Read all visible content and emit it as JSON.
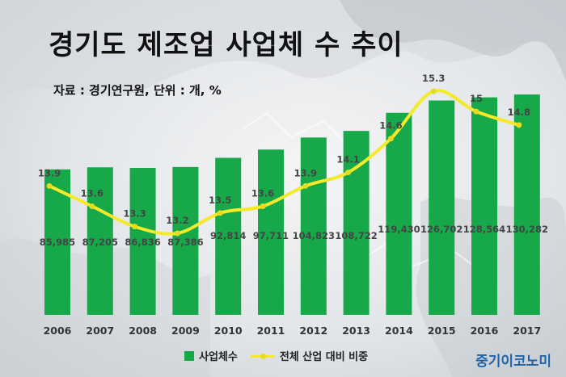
{
  "title": "경기도 제조업 사업체 수 추이",
  "source": "자료 : 경기연구원, 단위 : 개, %",
  "brand": "중기이코노미",
  "colors": {
    "bar": "#17a84a",
    "line": "#f4ea2a",
    "marker": "#e6dc1f",
    "brand": "#1e63a8"
  },
  "chart_data": {
    "type": "bar",
    "categories": [
      "2006",
      "2007",
      "2008",
      "2009",
      "2010",
      "2011",
      "2012",
      "2013",
      "2014",
      "2015",
      "2016",
      "2017"
    ],
    "series": [
      {
        "name": "사업체수",
        "type": "bar",
        "values": [
          85985,
          87205,
          86836,
          87386,
          92814,
          97711,
          104823,
          108722,
          119430,
          126702,
          128564,
          130282
        ],
        "labels": [
          "85,985",
          "87,205",
          "86,836",
          "87,386",
          "92,814",
          "97,711",
          "104,823",
          "108,722",
          "119,430",
          "126,702",
          "128,564",
          "130,282"
        ]
      },
      {
        "name": "전체 산업 대비 비중",
        "type": "line",
        "values": [
          13.9,
          13.6,
          13.3,
          13.2,
          13.5,
          13.6,
          13.9,
          14.1,
          14.6,
          15.3,
          15,
          14.8
        ],
        "labels": [
          "13.9",
          "13.6",
          "13.3",
          "13.2",
          "13.5",
          "13.6",
          "13.9",
          "14.1",
          "14.6",
          "15.3",
          "15",
          "14.8"
        ]
      }
    ],
    "legend": "bottom"
  }
}
